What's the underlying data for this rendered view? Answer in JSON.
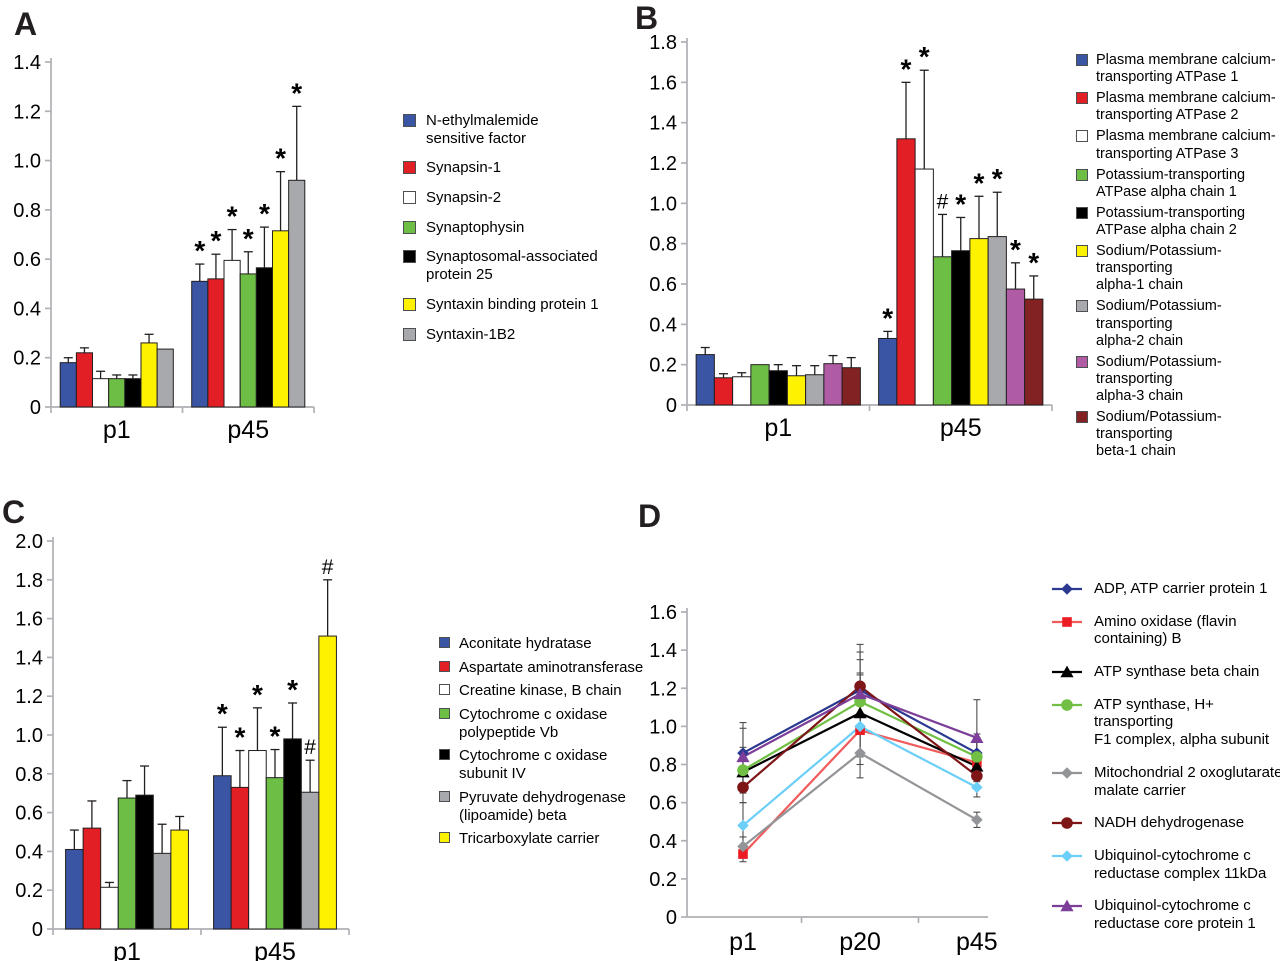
{
  "chart_data": [
    {
      "panel": "A",
      "type": "bar",
      "title": "",
      "categories": [
        "p1",
        "p45"
      ],
      "ylim": [
        0,
        1.4
      ],
      "yticks": [
        "0",
        "0.2",
        "0.4",
        "0.6",
        "0.8",
        "1.0",
        "1.2",
        "1.4"
      ],
      "grid": false,
      "legend_position": "right",
      "series": [
        {
          "name": "N-ethylmalemide\nsensitive factor",
          "color": "#3A55A4",
          "values": [
            0.18,
            0.51
          ],
          "errors": [
            0.02,
            0.07
          ],
          "annotations": [
            "",
            "*"
          ]
        },
        {
          "name": "Synapsin-1",
          "color": "#E31F26",
          "values": [
            0.22,
            0.52
          ],
          "errors": [
            0.02,
            0.1
          ],
          "annotations": [
            "",
            "*"
          ]
        },
        {
          "name": "Synapsin-2",
          "color": "#FFFFFF",
          "values": [
            0.115,
            0.595
          ],
          "errors": [
            0.03,
            0.125
          ],
          "annotations": [
            "",
            "*"
          ]
        },
        {
          "name": "Synaptophysin",
          "color": "#6CBE45",
          "values": [
            0.115,
            0.54
          ],
          "errors": [
            0.015,
            0.09
          ],
          "annotations": [
            "",
            "*"
          ]
        },
        {
          "name": "Synaptosomal-associated\nprotein 25",
          "color": "#000000",
          "values": [
            0.115,
            0.565
          ],
          "errors": [
            0.015,
            0.165
          ],
          "annotations": [
            "",
            "*"
          ]
        },
        {
          "name": "Syntaxin binding protein 1",
          "color": "#FFF200",
          "values": [
            0.26,
            0.715
          ],
          "errors": [
            0.035,
            0.24
          ],
          "annotations": [
            "",
            "*"
          ]
        },
        {
          "name": "Syntaxin-1B2",
          "color": "#A7A9AC",
          "values": [
            0.235,
            0.92
          ],
          "errors": [
            0,
            0.3
          ],
          "annotations": [
            "",
            "*"
          ]
        }
      ]
    },
    {
      "panel": "B",
      "type": "bar",
      "title": "",
      "categories": [
        "p1",
        "p45"
      ],
      "ylim": [
        0,
        1.8
      ],
      "yticks": [
        "0",
        "0.2",
        "0.4",
        "0.6",
        "0.8",
        "1.0",
        "1.2",
        "1.4",
        "1.6",
        "1.8"
      ],
      "grid": false,
      "legend_position": "right",
      "series": [
        {
          "name": "Plasma membrane calcium-\ntransporting ATPase 1",
          "color": "#3A55A4",
          "values": [
            0.25,
            0.33
          ],
          "errors": [
            0.035,
            0.035
          ],
          "annotations": [
            "",
            "*"
          ]
        },
        {
          "name": "Plasma membrane calcium-\ntransporting ATPase 2",
          "color": "#E31F26",
          "values": [
            0.135,
            1.32
          ],
          "errors": [
            0.02,
            0.28
          ],
          "annotations": [
            "",
            "*"
          ]
        },
        {
          "name": "Plasma membrane calcium-\ntransporting ATPase 3",
          "color": "#FFFFFF",
          "values": [
            0.14,
            1.17
          ],
          "errors": [
            0.02,
            0.49
          ],
          "annotations": [
            "",
            "*"
          ]
        },
        {
          "name": "Potassium-transporting\nATPase alpha chain 1",
          "color": "#6CBE45",
          "values": [
            0.2,
            0.735
          ],
          "errors": [
            0,
            0.21
          ],
          "annotations": [
            "",
            "#"
          ]
        },
        {
          "name": "Potassium-transporting\nATPase alpha chain 2",
          "color": "#000000",
          "values": [
            0.17,
            0.765
          ],
          "errors": [
            0.03,
            0.165
          ],
          "annotations": [
            "",
            "*"
          ]
        },
        {
          "name": "Sodium/Potassium-transporting\nalpha-1 chain",
          "color": "#FFF200",
          "values": [
            0.145,
            0.825
          ],
          "errors": [
            0.05,
            0.21
          ],
          "annotations": [
            "",
            "*"
          ]
        },
        {
          "name": "Sodium/Potassium-transporting\nalpha-2 chain",
          "color": "#A7A9AC",
          "values": [
            0.15,
            0.835
          ],
          "errors": [
            0.045,
            0.22
          ],
          "annotations": [
            "",
            "*"
          ]
        },
        {
          "name": "Sodium/Potassium-transporting\nalpha-3 chain",
          "color": "#B05CA4",
          "values": [
            0.205,
            0.575
          ],
          "errors": [
            0.04,
            0.13
          ],
          "annotations": [
            "",
            "*"
          ]
        },
        {
          "name": "Sodium/Potassium-transporting\nbeta-1 chain",
          "color": "#832222",
          "values": [
            0.185,
            0.525
          ],
          "errors": [
            0.05,
            0.115
          ],
          "annotations": [
            "",
            "*"
          ]
        }
      ]
    },
    {
      "panel": "C",
      "type": "bar",
      "title": "",
      "categories": [
        "p1",
        "p45"
      ],
      "ylim": [
        0,
        2.0
      ],
      "yticks": [
        "0",
        "0.2",
        "0.4",
        "0.6",
        "0.8",
        "1.0",
        "1.2",
        "1.4",
        "1.6",
        "1.8",
        "2.0"
      ],
      "grid": false,
      "legend_position": "right",
      "series": [
        {
          "name": "Aconitate hydratase",
          "color": "#3A55A4",
          "values": [
            0.41,
            0.79
          ],
          "errors": [
            0.1,
            0.25
          ],
          "annotations": [
            "",
            "*"
          ]
        },
        {
          "name": "Aspartate aminotransferase",
          "color": "#E31F26",
          "values": [
            0.52,
            0.73
          ],
          "errors": [
            0.14,
            0.19
          ],
          "annotations": [
            "",
            "*"
          ]
        },
        {
          "name": "Creatine kinase, B chain",
          "color": "#FFFFFF",
          "values": [
            0.215,
            0.92
          ],
          "errors": [
            0.025,
            0.22
          ],
          "annotations": [
            "",
            "*"
          ]
        },
        {
          "name": "Cytochrome c oxidase\npolypeptide Vb",
          "color": "#6CBE45",
          "values": [
            0.675,
            0.78
          ],
          "errors": [
            0.09,
            0.145
          ],
          "annotations": [
            "",
            "*"
          ]
        },
        {
          "name": "Cytochrome c oxidase\nsubunit IV",
          "color": "#000000",
          "values": [
            0.69,
            0.98
          ],
          "errors": [
            0.15,
            0.185
          ],
          "annotations": [
            "",
            "*"
          ]
        },
        {
          "name": "Pyruvate dehydrogenase\n(lipoamide) beta",
          "color": "#A7A9AC",
          "values": [
            0.39,
            0.705
          ],
          "errors": [
            0.15,
            0.165
          ],
          "annotations": [
            "",
            "#"
          ]
        },
        {
          "name": "Tricarboxylate carrier",
          "color": "#FFF200",
          "values": [
            0.51,
            1.51
          ],
          "errors": [
            0.07,
            0.29
          ],
          "annotations": [
            "",
            "#"
          ]
        }
      ]
    },
    {
      "panel": "D",
      "type": "line",
      "title": "",
      "x": [
        "p1",
        "p20",
        "p45"
      ],
      "ylim": [
        0,
        1.6
      ],
      "yticks": [
        "0",
        "0.2",
        "0.4",
        "0.6",
        "0.8",
        "1.0",
        "1.2",
        "1.4",
        "1.6"
      ],
      "grid": false,
      "legend_position": "right",
      "series": [
        {
          "name": "ADP, ATP carrier protein 1",
          "color": "#2B3990",
          "marker": "diamond",
          "values": [
            0.86,
            1.19,
            0.86
          ],
          "errors": [
            0.16,
            0.2,
            0.1
          ]
        },
        {
          "name": "Amino oxidase (flavin\ncontaining) B",
          "color": "#EC1C24",
          "line_color": "#F05B5B",
          "marker": "square",
          "values": [
            0.33,
            0.98,
            0.81
          ],
          "errors": [
            0.04,
            0.18,
            0.12
          ]
        },
        {
          "name": "ATP synthase beta chain",
          "color": "#000000",
          "marker": "triangle",
          "values": [
            0.76,
            1.07,
            0.79
          ],
          "errors": [
            0.1,
            0.2,
            0.08
          ]
        },
        {
          "name": "ATP synthase, H+ transporting\nF1 complex, alpha subunit",
          "color": "#71BF44",
          "marker": "circle",
          "values": [
            0.77,
            1.13,
            0.84
          ],
          "errors": [
            0.12,
            0.15,
            0.1
          ]
        },
        {
          "name": "Mitochondrial 2 oxoglutarate/\nmalate carrier",
          "color": "#929497",
          "marker": "diamond",
          "values": [
            0.37,
            0.86,
            0.51
          ],
          "errors": [
            0.05,
            0.13,
            0.04
          ]
        },
        {
          "name": "NADH dehydrogenase",
          "color": "#7E1517",
          "marker": "circle",
          "values": [
            0.68,
            1.21,
            0.74
          ],
          "errors": [
            0.08,
            0.22,
            0.06
          ]
        },
        {
          "name": "Ubiquinol-cytochrome c\nreductase complex 11kDa",
          "color": "#6CCFF7",
          "marker": "diamond",
          "values": [
            0.48,
            1.0,
            0.68
          ],
          "errors": [
            0.12,
            0.16,
            0.05
          ]
        },
        {
          "name": "Ubiquinol-cytochrome c\nreductase core protein 1",
          "color": "#7C3E98",
          "marker": "triangle",
          "values": [
            0.84,
            1.17,
            0.94
          ],
          "errors": [
            0.15,
            0.18,
            0.2
          ]
        }
      ]
    }
  ],
  "style_colors": {
    "axis": "#AFB1B4",
    "bar_border": "#231F20",
    "error_bar": "#231F20",
    "annotation": "#000000"
  }
}
